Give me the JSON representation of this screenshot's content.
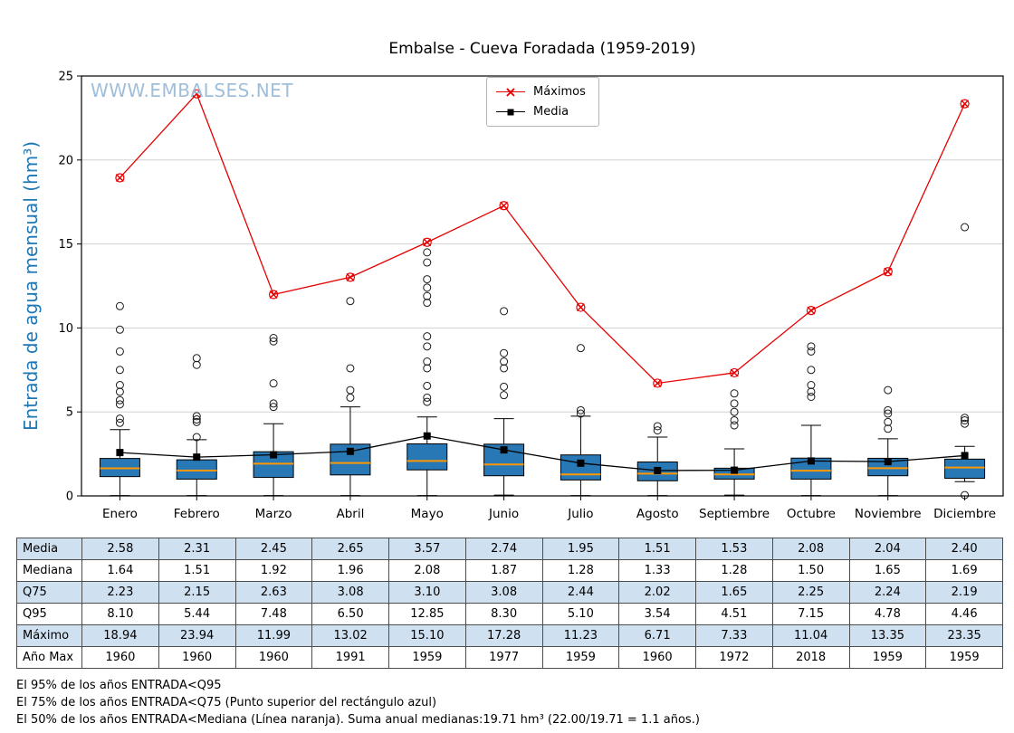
{
  "watermark": "WWW.EMBALSES.NET",
  "chart_data": {
    "type": "boxplot",
    "title": "Embalse - Cueva Foradada (1959-2019)",
    "ylabel": "Entrada de agua mensual (hm³)",
    "xlabel": "",
    "ylim": [
      0,
      25
    ],
    "yticks": [
      0,
      5,
      10,
      15,
      20,
      25
    ],
    "grid": true,
    "legend_position": "top-center",
    "categories": [
      "Enero",
      "Febrero",
      "Marzo",
      "Abril",
      "Mayo",
      "Junio",
      "Julio",
      "Agosto",
      "Septiembre",
      "Octubre",
      "Noviembre",
      "Diciembre"
    ],
    "legend": [
      {
        "label": "Máximos",
        "color": "#e60000",
        "marker": "x"
      },
      {
        "label": "Media",
        "color": "#000000",
        "marker": "square"
      }
    ],
    "series": [
      {
        "name": "Máximos",
        "values": [
          18.94,
          23.94,
          11.99,
          13.02,
          15.1,
          17.28,
          11.23,
          6.71,
          7.33,
          11.04,
          13.35,
          23.35
        ]
      },
      {
        "name": "Media",
        "values": [
          2.58,
          2.31,
          2.45,
          2.65,
          3.57,
          2.74,
          1.95,
          1.51,
          1.53,
          2.08,
          2.04,
          2.4
        ]
      }
    ],
    "boxes": [
      {
        "q1": 1.15,
        "median": 1.64,
        "q3": 2.23,
        "lo": 0.02,
        "hi": 3.95,
        "outliers": [
          4.35,
          4.6,
          5.45,
          5.7,
          6.2,
          6.6,
          7.5,
          8.6,
          9.9,
          11.3
        ]
      },
      {
        "q1": 1.0,
        "median": 1.51,
        "q3": 2.15,
        "lo": 0.02,
        "hi": 3.35,
        "outliers": [
          3.5,
          4.4,
          4.55,
          4.75,
          7.8,
          8.2
        ]
      },
      {
        "q1": 1.1,
        "median": 1.92,
        "q3": 2.63,
        "lo": 0.02,
        "hi": 4.3,
        "outliers": [
          5.3,
          5.5,
          6.7,
          9.2,
          9.4
        ]
      },
      {
        "q1": 1.25,
        "median": 1.96,
        "q3": 3.08,
        "lo": 0.02,
        "hi": 5.3,
        "outliers": [
          5.85,
          6.3,
          7.6,
          11.6
        ]
      },
      {
        "q1": 1.55,
        "median": 2.08,
        "q3": 3.1,
        "lo": 0.02,
        "hi": 4.7,
        "outliers": [
          5.6,
          5.85,
          6.55,
          7.6,
          8.0,
          8.9,
          9.5,
          11.5,
          11.9,
          12.4,
          12.9,
          13.9,
          14.5
        ]
      },
      {
        "q1": 1.2,
        "median": 1.87,
        "q3": 3.08,
        "lo": 0.05,
        "hi": 4.6,
        "outliers": [
          6.0,
          6.5,
          7.6,
          8.0,
          8.5,
          11.0
        ]
      },
      {
        "q1": 0.95,
        "median": 1.28,
        "q3": 2.44,
        "lo": 0.02,
        "hi": 4.75,
        "outliers": [
          4.9,
          5.1,
          8.8
        ]
      },
      {
        "q1": 0.9,
        "median": 1.33,
        "q3": 2.02,
        "lo": 0.02,
        "hi": 3.5,
        "outliers": [
          3.9,
          4.15
        ]
      },
      {
        "q1": 1.0,
        "median": 1.28,
        "q3": 1.65,
        "lo": 0.05,
        "hi": 2.8,
        "outliers": [
          4.2,
          4.5,
          5.0,
          5.5,
          6.1
        ]
      },
      {
        "q1": 1.0,
        "median": 1.5,
        "q3": 2.25,
        "lo": 0.02,
        "hi": 4.2,
        "outliers": [
          5.9,
          6.2,
          6.6,
          7.5,
          8.6,
          8.9
        ]
      },
      {
        "q1": 1.2,
        "median": 1.65,
        "q3": 2.24,
        "lo": 0.02,
        "hi": 3.4,
        "outliers": [
          4.0,
          4.4,
          4.9,
          5.1,
          6.3
        ]
      },
      {
        "q1": 1.05,
        "median": 1.69,
        "q3": 2.19,
        "lo": 0.85,
        "hi": 2.95,
        "outliers": [
          0.05,
          4.3,
          4.5,
          4.65,
          16.0
        ]
      }
    ],
    "colors": {
      "box_fill": "#2878b5",
      "median": "#ff9800",
      "max_line": "#e60000",
      "mean_line": "#000000",
      "grid": "#cccccc",
      "axis": "#000000",
      "ylabel": "#1f77b4",
      "watermark": "#9fbeda"
    }
  },
  "table": {
    "stripe_color": "#cfe0f1",
    "row_labels": [
      "Media",
      "Mediana",
      "Q75",
      "Q95",
      "Máximo",
      "Año Max"
    ],
    "rows": [
      [
        "2.58",
        "2.31",
        "2.45",
        "2.65",
        "3.57",
        "2.74",
        "1.95",
        "1.51",
        "1.53",
        "2.08",
        "2.04",
        "2.40"
      ],
      [
        "1.64",
        "1.51",
        "1.92",
        "1.96",
        "2.08",
        "1.87",
        "1.28",
        "1.33",
        "1.28",
        "1.50",
        "1.65",
        "1.69"
      ],
      [
        "2.23",
        "2.15",
        "2.63",
        "3.08",
        "3.10",
        "3.08",
        "2.44",
        "2.02",
        "1.65",
        "2.25",
        "2.24",
        "2.19"
      ],
      [
        "8.10",
        "5.44",
        "7.48",
        "6.50",
        "12.85",
        "8.30",
        "5.10",
        "3.54",
        "4.51",
        "7.15",
        "4.78",
        "4.46"
      ],
      [
        "18.94",
        "23.94",
        "11.99",
        "13.02",
        "15.10",
        "17.28",
        "11.23",
        "6.71",
        "7.33",
        "11.04",
        "13.35",
        "23.35"
      ],
      [
        "1960",
        "1960",
        "1960",
        "1991",
        "1959",
        "1977",
        "1959",
        "1960",
        "1972",
        "2018",
        "1959",
        "1959"
      ]
    ]
  },
  "footer": {
    "line1": "El 95% de los años ENTRADA<Q95",
    "line2": "El 75% de los años ENTRADA<Q75 (Punto superior del rectángulo azul)",
    "line3": "El 50% de los años ENTRADA<Mediana (Línea naranja). Suma anual medianas:19.71 hm³ (22.00/19.71 = 1.1 años.)"
  }
}
